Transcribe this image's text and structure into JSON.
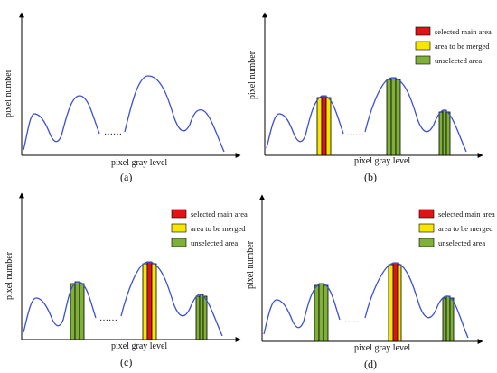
{
  "axes": {
    "ylabel": "pixel number",
    "xlabel": "pixel gray level"
  },
  "legend": {
    "selected": "selected main area",
    "merged": "area to be merged",
    "unselected": "unselected area"
  },
  "panels": {
    "a": "(a)",
    "b": "(b)",
    "c": "(c)",
    "d": "(d)"
  },
  "colors": {
    "curve": "#3a4fd6",
    "red": "#e11414",
    "yellow": "#f6e600",
    "green": "#7fb13a",
    "axis": "#000000"
  }
}
